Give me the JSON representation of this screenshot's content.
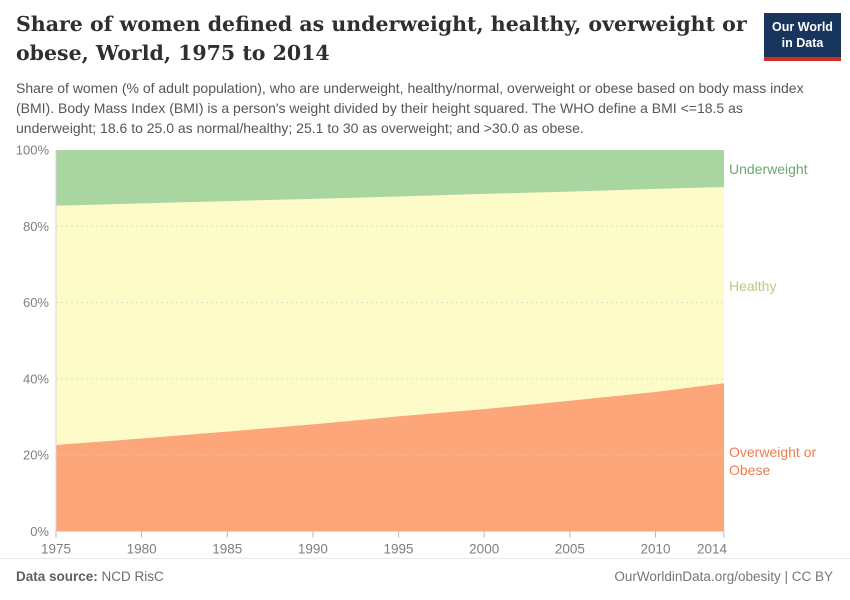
{
  "header": {
    "title": "Share of women defined as underweight, healthy, overweight or obese, World, 1975 to 2014",
    "subtitle": "Share of women (% of adult population), who are underweight, healthy/normal, overweight or obese based on body mass index (BMI). Body Mass Index (BMI) is a person's weight divided by their height squared. The WHO define a BMI <=18.5 as underweight; 18.6 to 25.0 as normal/healthy; 25.1 to 30 as overweight; and >30.0 as obese.",
    "logo": {
      "line1": "Our World",
      "line2": "in Data",
      "bg_color": "#18355e",
      "accent_color": "#d42b22"
    }
  },
  "chart_data": {
    "type": "area",
    "stacked": true,
    "title": "Share of women defined as underweight, healthy, overweight or obese, World, 1975 to 2014",
    "x": [
      1975,
      1980,
      1985,
      1990,
      1995,
      2000,
      2005,
      2010,
      2014
    ],
    "x_tick_labels": [
      "1975",
      "1980",
      "1985",
      "1990",
      "1995",
      "2000",
      "2005",
      "2010",
      "2014"
    ],
    "series": [
      {
        "name": "Overweight or Obese",
        "values": [
          22.7,
          24.4,
          26.2,
          28.1,
          30.2,
          32.1,
          34.3,
          36.6,
          38.9
        ],
        "area_color": "#fda679",
        "label_color": "#f07d4e"
      },
      {
        "name": "Healthy",
        "values": [
          62.7,
          61.6,
          60.4,
          59.1,
          57.6,
          56.4,
          54.8,
          53.2,
          51.4
        ],
        "area_color": "#fdfbc7",
        "label_color": "#bdc688"
      },
      {
        "name": "Underweight",
        "values": [
          14.6,
          14.0,
          13.4,
          12.8,
          12.2,
          11.5,
          10.9,
          10.2,
          9.7
        ],
        "area_color": "#a8d5a0",
        "label_color": "#69a873"
      }
    ],
    "ylim": [
      0,
      100
    ],
    "yticks": [
      0,
      20,
      40,
      60,
      80,
      100
    ],
    "ytick_suffix": "%",
    "grid": "horizontal-dashed",
    "legend_position": "right-of-plot",
    "axis_text_color": "#7f7f7f"
  },
  "footer": {
    "datasource_label": "Data source:",
    "datasource_value": " NCD RisC",
    "credit": "OurWorldinData.org/obesity | CC BY"
  }
}
